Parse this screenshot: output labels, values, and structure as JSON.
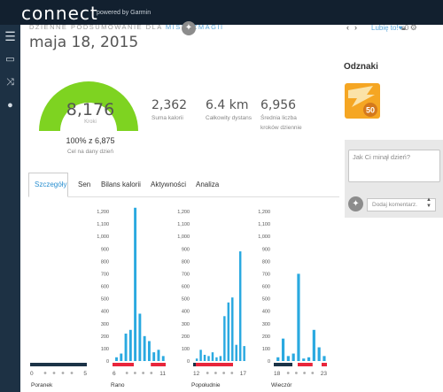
{
  "header": {
    "logo": "connect",
    "powered_by": "powered by Garmin",
    "subtitle_prefix": "DZIENNE PODSUMOWANIE DLA ",
    "subtitle_user": "MISTRZMAGII",
    "date": "maja 18, 2015",
    "like_label": "Lubię to!",
    "like_count": "0",
    "prev_arrow": "‹",
    "next_arrow": "›"
  },
  "summary": {
    "steps_value": "8,176",
    "steps_label": "Kroki",
    "goal_percent_text": "100% z 6,875",
    "goal_label": "Cel na dany dzień",
    "goal_progress_percent": 100,
    "gauge_color": "#7ed321",
    "stats": [
      {
        "value": "2,362",
        "label": "Suma kalorii"
      },
      {
        "value": "6.4 km",
        "label": "Całkowity dystans"
      },
      {
        "value": "6,956",
        "label": "Średnia liczba kroków dziennie"
      }
    ]
  },
  "badges": {
    "title": "Odznaki",
    "badge_number": "50",
    "badge_color": "#f5a623"
  },
  "comments": {
    "placeholder": "Jak Ci minął dzień?",
    "add_placeholder": "Dodaj komentarz."
  },
  "tabs": [
    {
      "label": "Szczegóły",
      "active": true
    },
    {
      "label": "Sen",
      "active": false
    },
    {
      "label": "Bilans kalorii",
      "active": false
    },
    {
      "label": "Aktywności",
      "active": false
    },
    {
      "label": "Analiza",
      "active": false
    }
  ],
  "chart_data": {
    "type": "bar",
    "title": "",
    "ylim": [
      0,
      1200
    ],
    "y_ticks": [
      "1,200",
      "1,100",
      "1,000",
      "900",
      "800",
      "700",
      "600",
      "500",
      "400",
      "300",
      "200",
      "100",
      "0"
    ],
    "bar_color": "#2aa9e0",
    "panels": [
      {
        "name": "Poranek",
        "x_start": "0",
        "x_end": "5",
        "show_y_axis": false,
        "values": []
      },
      {
        "name": "Rano",
        "x_start": "6",
        "x_end": "11",
        "show_y_axis": true,
        "values": [
          30,
          60,
          220,
          250,
          1230,
          380,
          200,
          160,
          70,
          90,
          40
        ]
      },
      {
        "name": "Popołudnie",
        "x_start": "12",
        "x_end": "17",
        "show_y_axis": true,
        "values": [
          20,
          90,
          50,
          40,
          70,
          30,
          40,
          360,
          470,
          510,
          130,
          880,
          120
        ]
      },
      {
        "name": "Wieczór",
        "x_start": "18",
        "x_end": "23",
        "show_y_axis": true,
        "values": [
          30,
          180,
          40,
          60,
          700,
          20,
          30,
          250,
          110,
          40
        ]
      }
    ]
  }
}
